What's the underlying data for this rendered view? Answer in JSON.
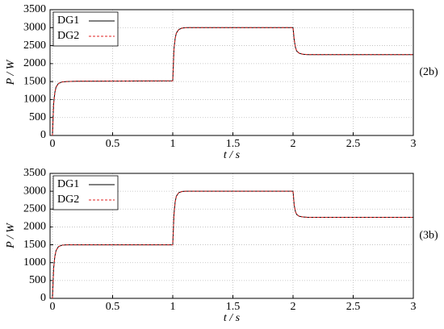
{
  "chart_data": [
    {
      "type": "line",
      "annotation": "(2b)",
      "x_label": "t / s",
      "y_label": "P / W",
      "xlim": [
        -0.02,
        3
      ],
      "ylim": [
        0,
        3500
      ],
      "xticks": [
        0,
        0.5,
        1,
        1.5,
        2,
        2.5,
        3
      ],
      "yticks": [
        0,
        500,
        1000,
        1500,
        2000,
        2500,
        3000,
        3500
      ],
      "grid": true,
      "legend": "upper left",
      "x": [
        0,
        0.01,
        0.02,
        0.03,
        0.05,
        0.08,
        0.12,
        0.2,
        1,
        1.01,
        1.02,
        1.03,
        1.05,
        1.08,
        1.12,
        1.2,
        2,
        2.01,
        2.02,
        2.03,
        2.05,
        2.08,
        2.12,
        2.2,
        3
      ],
      "series": [
        {
          "name": "DG1",
          "color": "#000000",
          "line_style": "solid",
          "values": [
            0,
            900,
            1200,
            1350,
            1450,
            1490,
            1500,
            1510,
            1520,
            2400,
            2700,
            2850,
            2950,
            2990,
            3000,
            3000,
            3000,
            2650,
            2450,
            2350,
            2290,
            2260,
            2250,
            2250,
            2250
          ]
        },
        {
          "name": "DG2",
          "color": "#e02020",
          "line_style": "dashed",
          "values": [
            0,
            880,
            1190,
            1340,
            1445,
            1488,
            1500,
            1510,
            1520,
            2380,
            2690,
            2840,
            2945,
            2990,
            3000,
            3000,
            3000,
            2660,
            2460,
            2355,
            2295,
            2262,
            2252,
            2250,
            2250
          ]
        }
      ]
    },
    {
      "type": "line",
      "annotation": "(3b)",
      "x_label": "t / s",
      "y_label": "P / W",
      "xlim": [
        -0.02,
        3
      ],
      "ylim": [
        0,
        3500
      ],
      "xticks": [
        0,
        0.5,
        1,
        1.5,
        2,
        2.5,
        3
      ],
      "yticks": [
        0,
        500,
        1000,
        1500,
        2000,
        2500,
        3000,
        3500
      ],
      "grid": true,
      "legend": "upper left",
      "x": [
        0,
        0.01,
        0.02,
        0.03,
        0.05,
        0.08,
        0.12,
        0.2,
        1,
        1.01,
        1.02,
        1.03,
        1.05,
        1.08,
        1.12,
        1.2,
        2,
        2.01,
        2.02,
        2.03,
        2.05,
        2.08,
        2.12,
        2.2,
        3
      ],
      "series": [
        {
          "name": "DG1",
          "color": "#000000",
          "line_style": "solid",
          "values": [
            0,
            850,
            1180,
            1340,
            1450,
            1490,
            1500,
            1500,
            1500,
            2350,
            2700,
            2860,
            2960,
            2995,
            3000,
            3000,
            3000,
            2600,
            2430,
            2350,
            2300,
            2280,
            2270,
            2270,
            2270
          ]
        },
        {
          "name": "DG2",
          "color": "#e02020",
          "line_style": "dashed",
          "values": [
            0,
            840,
            1170,
            1335,
            1448,
            1489,
            1500,
            1500,
            1500,
            2330,
            2690,
            2855,
            2958,
            2995,
            3000,
            3000,
            3000,
            2610,
            2435,
            2355,
            2302,
            2281,
            2270,
            2270,
            2270
          ]
        }
      ]
    }
  ]
}
